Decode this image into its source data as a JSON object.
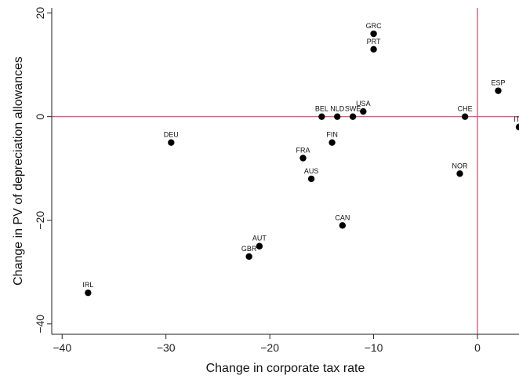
{
  "chart_data": {
    "type": "scatter",
    "xlabel": "Change in corporate tax rate",
    "ylabel": "Change in PV of depreciation allowances",
    "xlim": [
      -41,
      4
    ],
    "ylim": [
      -42,
      21
    ],
    "x_ticks": [
      -40,
      -30,
      -20,
      -10,
      0
    ],
    "y_ticks": [
      -40,
      -20,
      0,
      20
    ],
    "x_tick_labels": [
      "−40",
      "−30",
      "−20",
      "−10",
      "0"
    ],
    "y_tick_labels": [
      "−40",
      "−20",
      "0",
      "20"
    ],
    "reference_lines": {
      "x": 0,
      "y": 0,
      "color": "#d4466a"
    },
    "grid": false,
    "marker_color": "#000000",
    "points": [
      {
        "label": "GRC",
        "x": -10,
        "y": 16
      },
      {
        "label": "PRT",
        "x": -10,
        "y": 13
      },
      {
        "label": "ESP",
        "x": 2,
        "y": 5
      },
      {
        "label": "USA",
        "x": -11,
        "y": 1
      },
      {
        "label": "BEL",
        "x": -15,
        "y": 0
      },
      {
        "label": "NLD",
        "x": -13.5,
        "y": 0
      },
      {
        "label": "SWE",
        "x": -12,
        "y": 0
      },
      {
        "label": "CHE",
        "x": -1.2,
        "y": 0
      },
      {
        "label": "ITA",
        "x": 4,
        "y": -2
      },
      {
        "label": "DEU",
        "x": -29.5,
        "y": -5
      },
      {
        "label": "FIN",
        "x": -14,
        "y": -5
      },
      {
        "label": "FRA",
        "x": -16.8,
        "y": -8
      },
      {
        "label": "AUS",
        "x": -16,
        "y": -12
      },
      {
        "label": "NOR",
        "x": -1.7,
        "y": -11
      },
      {
        "label": "CAN",
        "x": -13,
        "y": -21
      },
      {
        "label": "AUT",
        "x": -21,
        "y": -25
      },
      {
        "label": "GBR",
        "x": -22,
        "y": -27
      },
      {
        "label": "IRL",
        "x": -37.5,
        "y": -34
      }
    ]
  }
}
